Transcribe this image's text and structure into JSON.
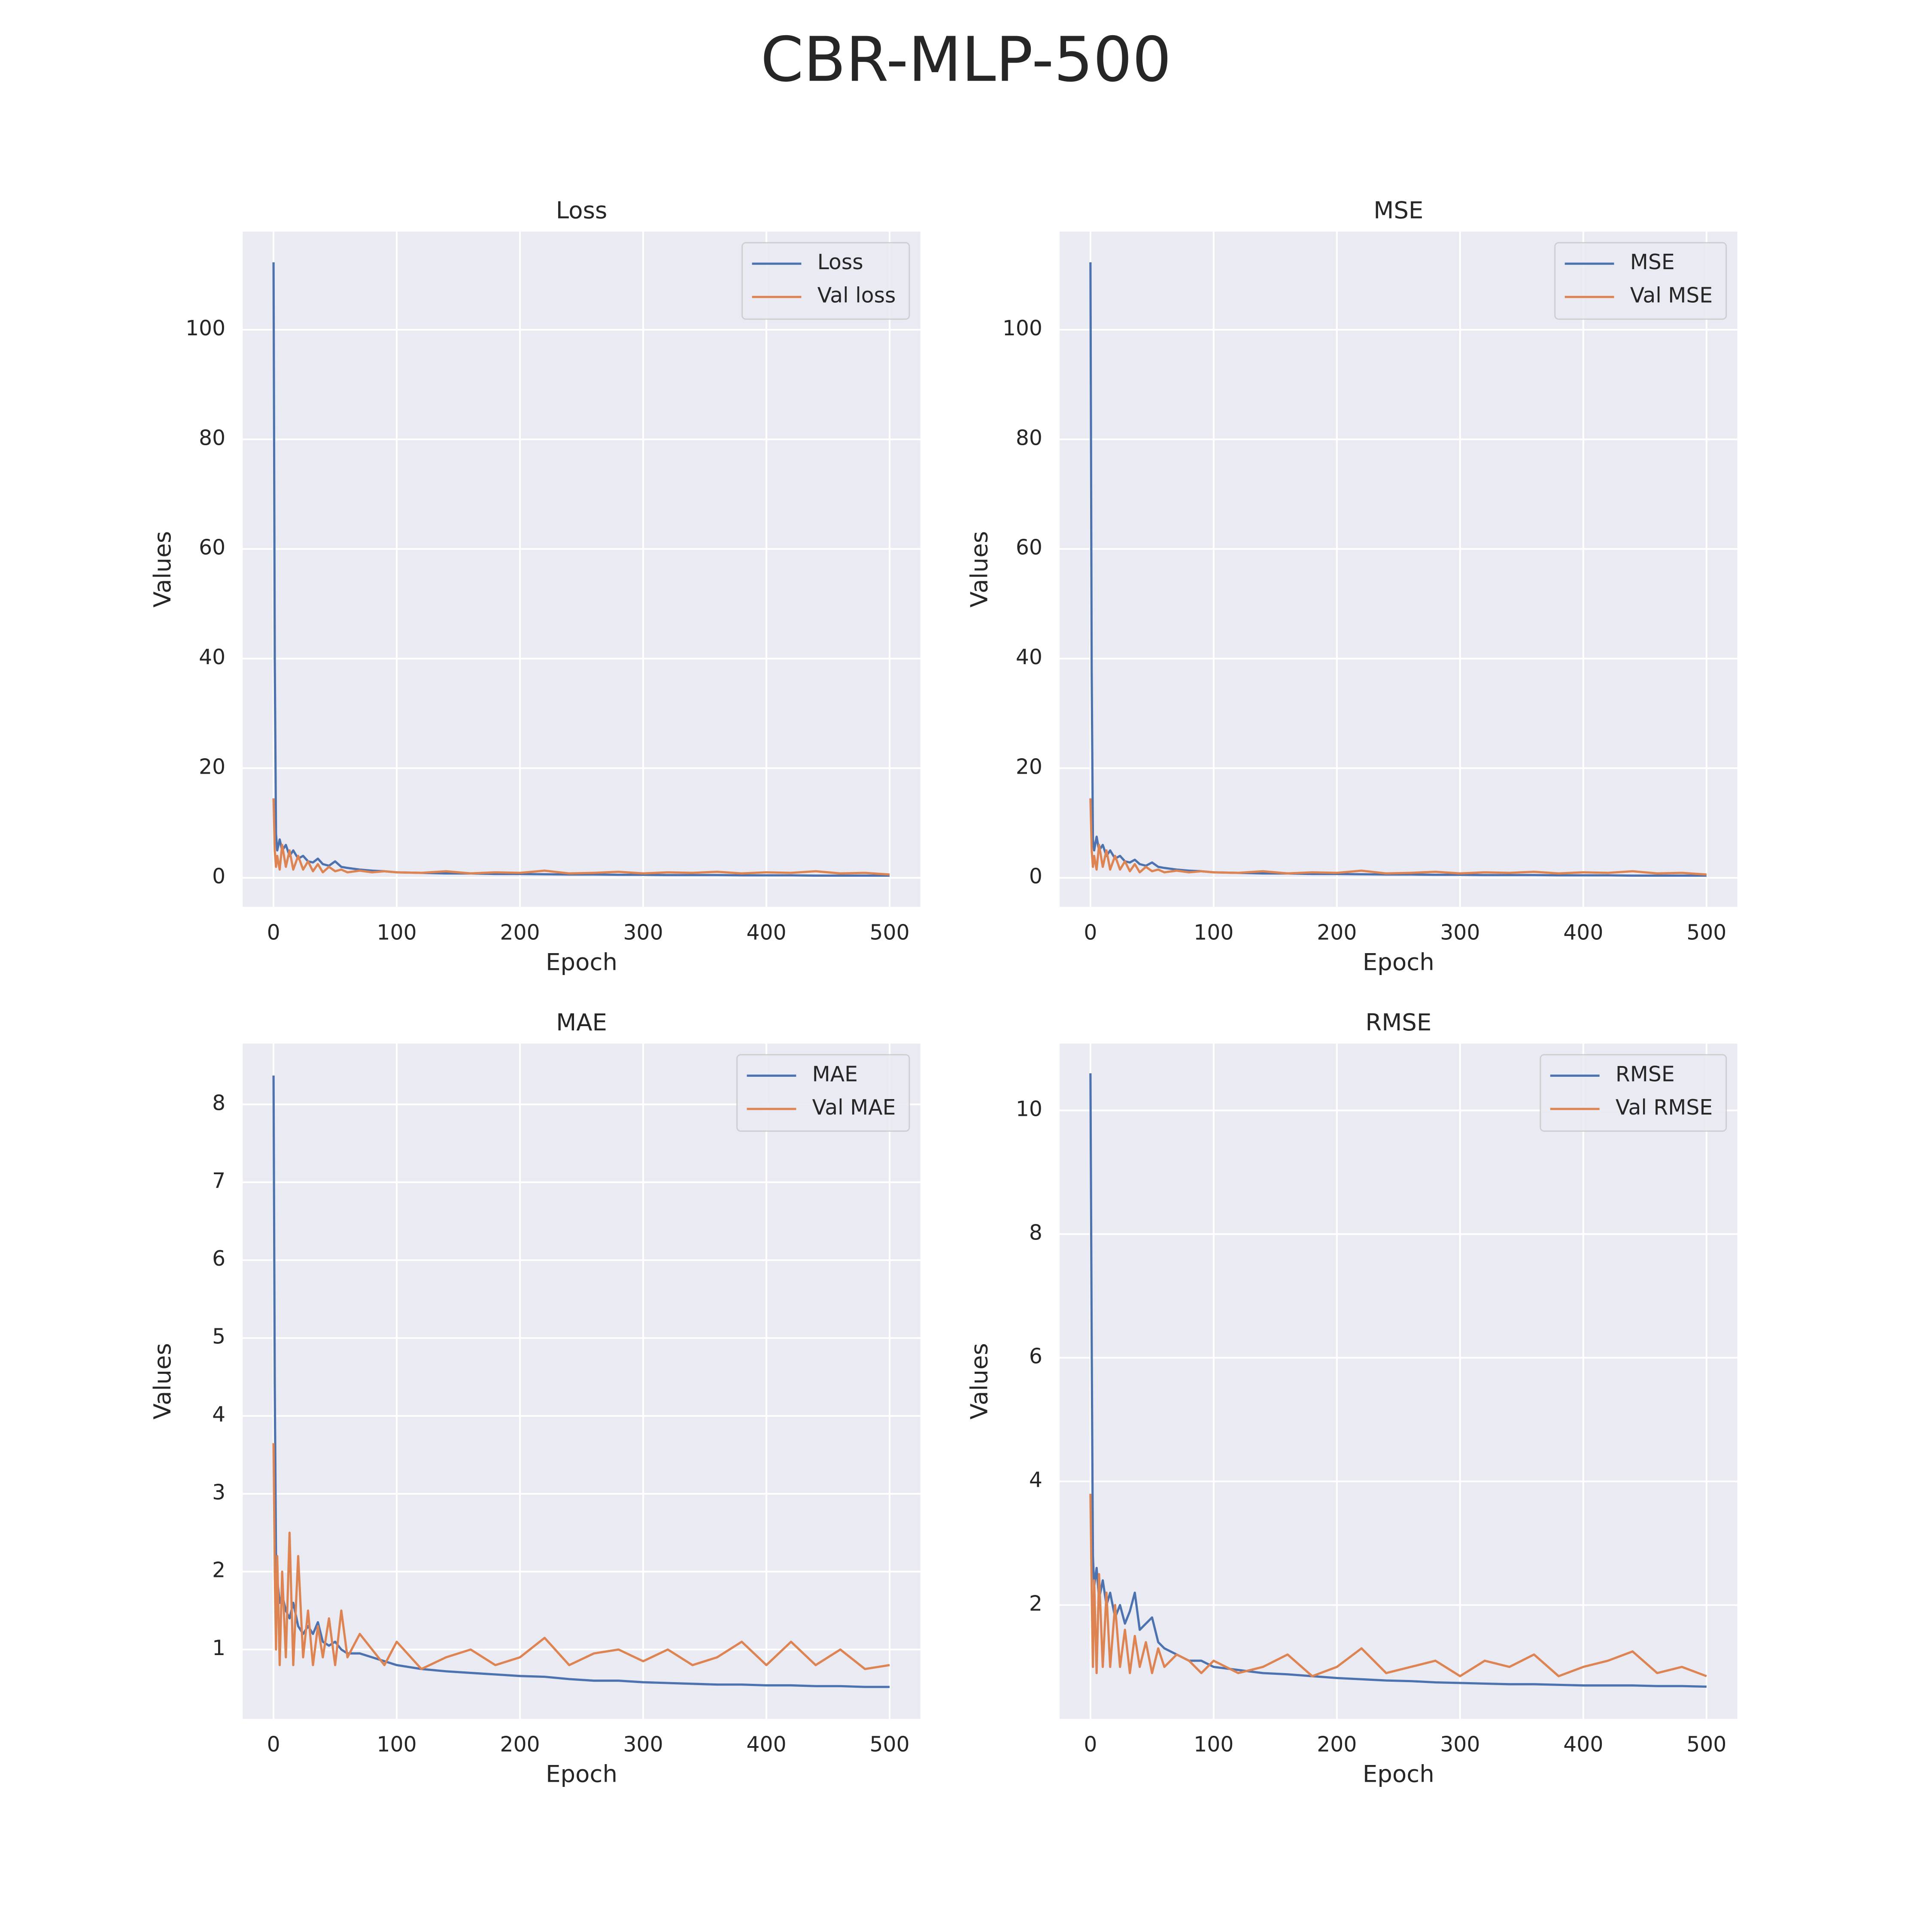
{
  "title": "CBR-MLP-500",
  "chart_data": [
    {
      "type": "line",
      "title": "Loss",
      "xlabel": "Epoch",
      "ylabel": "Values",
      "x": [
        0,
        1,
        2,
        3,
        5,
        7,
        10,
        13,
        16,
        20,
        24,
        28,
        32,
        36,
        40,
        45,
        50,
        55,
        60,
        70,
        80,
        90,
        100,
        120,
        140,
        160,
        180,
        200,
        220,
        240,
        260,
        280,
        300,
        320,
        340,
        360,
        380,
        400,
        420,
        440,
        460,
        480,
        500
      ],
      "series": [
        {
          "name": "Loss",
          "color": "#4c72b0",
          "values": [
            112.3,
            40,
            8,
            5,
            7,
            5,
            6,
            4,
            5,
            3.5,
            4,
            3,
            2.8,
            3.5,
            2.5,
            2.2,
            3,
            2,
            1.8,
            1.5,
            1.3,
            1.2,
            1.0,
            0.9,
            0.8,
            0.8,
            0.7,
            0.7,
            0.65,
            0.6,
            0.6,
            0.55,
            0.55,
            0.5,
            0.5,
            0.5,
            0.45,
            0.45,
            0.45,
            0.4,
            0.4,
            0.4,
            0.4
          ]
        },
        {
          "name": "Val loss",
          "color": "#dd8452",
          "values": [
            14.5,
            5,
            2,
            4,
            1.5,
            6,
            2,
            5,
            1.5,
            4,
            1.5,
            3,
            1.2,
            2.5,
            1,
            2,
            1.2,
            1.5,
            1,
            1.3,
            1,
            1.2,
            1.0,
            0.9,
            1.2,
            0.8,
            1.0,
            0.9,
            1.3,
            0.8,
            0.9,
            1.1,
            0.8,
            1.0,
            0.9,
            1.1,
            0.8,
            1.0,
            0.9,
            1.2,
            0.8,
            0.9,
            0.6
          ]
        }
      ],
      "xlim": [
        -25,
        525
      ],
      "ylim": [
        -5.3,
        117.9
      ],
      "xticks": [
        0,
        100,
        200,
        300,
        400,
        500
      ],
      "yticks": [
        0,
        20,
        40,
        60,
        80,
        100
      ],
      "grid": true,
      "legend": "upper right"
    },
    {
      "type": "line",
      "title": "MSE",
      "xlabel": "Epoch",
      "ylabel": "Values",
      "x": [
        0,
        1,
        2,
        3,
        5,
        7,
        10,
        13,
        16,
        20,
        24,
        28,
        32,
        36,
        40,
        45,
        50,
        55,
        60,
        70,
        80,
        90,
        100,
        120,
        140,
        160,
        180,
        200,
        220,
        240,
        260,
        280,
        300,
        320,
        340,
        360,
        380,
        400,
        420,
        440,
        460,
        480,
        500
      ],
      "series": [
        {
          "name": "MSE",
          "color": "#4c72b0",
          "values": [
            112.3,
            38,
            7,
            5,
            7.5,
            5,
            6,
            4,
            5,
            3.5,
            4,
            3,
            2.8,
            3.3,
            2.5,
            2.2,
            2.8,
            2,
            1.8,
            1.5,
            1.3,
            1.2,
            1.0,
            0.9,
            0.8,
            0.8,
            0.7,
            0.7,
            0.65,
            0.6,
            0.6,
            0.55,
            0.55,
            0.5,
            0.5,
            0.5,
            0.45,
            0.45,
            0.45,
            0.4,
            0.4,
            0.4,
            0.4
          ]
        },
        {
          "name": "Val MSE",
          "color": "#dd8452",
          "values": [
            14.5,
            5,
            2,
            4,
            1.5,
            6,
            2,
            5,
            1.5,
            4,
            1.5,
            3,
            1.2,
            2.5,
            1,
            2,
            1.2,
            1.5,
            1,
            1.3,
            1,
            1.2,
            1.0,
            0.9,
            1.2,
            0.8,
            1.0,
            0.9,
            1.3,
            0.8,
            0.9,
            1.1,
            0.8,
            1.0,
            0.9,
            1.1,
            0.8,
            1.0,
            0.9,
            1.2,
            0.8,
            0.9,
            0.6
          ]
        }
      ],
      "xlim": [
        -25,
        525
      ],
      "ylim": [
        -5.3,
        117.9
      ],
      "xticks": [
        0,
        100,
        200,
        300,
        400,
        500
      ],
      "yticks": [
        0,
        20,
        40,
        60,
        80,
        100
      ],
      "grid": true,
      "legend": "upper right"
    },
    {
      "type": "line",
      "title": "MAE",
      "xlabel": "Epoch",
      "ylabel": "Values",
      "x": [
        0,
        1,
        2,
        3,
        5,
        7,
        10,
        13,
        16,
        20,
        24,
        28,
        32,
        36,
        40,
        45,
        50,
        55,
        60,
        70,
        80,
        90,
        100,
        120,
        140,
        160,
        180,
        200,
        220,
        240,
        260,
        280,
        300,
        320,
        340,
        360,
        380,
        400,
        420,
        440,
        460,
        480,
        500
      ],
      "series": [
        {
          "name": "MAE",
          "color": "#4c72b0",
          "values": [
            8.37,
            4.4,
            2.2,
            1.9,
            1.6,
            1.7,
            1.5,
            1.4,
            1.6,
            1.3,
            1.2,
            1.3,
            1.2,
            1.35,
            1.1,
            1.05,
            1.1,
            1.0,
            0.95,
            0.95,
            0.9,
            0.85,
            0.8,
            0.75,
            0.72,
            0.7,
            0.68,
            0.66,
            0.65,
            0.62,
            0.6,
            0.6,
            0.58,
            0.57,
            0.56,
            0.55,
            0.55,
            0.54,
            0.54,
            0.53,
            0.53,
            0.52,
            0.52
          ]
        },
        {
          "name": "Val MAE",
          "color": "#dd8452",
          "values": [
            3.65,
            2.0,
            1.0,
            2.2,
            0.8,
            2.0,
            0.9,
            2.5,
            0.8,
            2.2,
            0.9,
            1.5,
            0.8,
            1.3,
            0.9,
            1.4,
            0.8,
            1.5,
            0.9,
            1.2,
            1.0,
            0.8,
            1.1,
            0.75,
            0.9,
            1.0,
            0.8,
            0.9,
            1.15,
            0.8,
            0.95,
            1.0,
            0.85,
            1.0,
            0.8,
            0.9,
            1.1,
            0.8,
            1.1,
            0.8,
            1.0,
            0.75,
            0.8
          ]
        }
      ],
      "xlim": [
        -25,
        525
      ],
      "ylim": [
        0.11,
        8.78
      ],
      "xticks": [
        0,
        100,
        200,
        300,
        400,
        500
      ],
      "yticks": [
        1,
        2,
        3,
        4,
        5,
        6,
        7,
        8
      ],
      "grid": true,
      "legend": "upper right"
    },
    {
      "type": "line",
      "title": "RMSE",
      "xlabel": "Epoch",
      "ylabel": "Values",
      "x": [
        0,
        1,
        2,
        3,
        5,
        7,
        10,
        13,
        16,
        20,
        24,
        28,
        32,
        36,
        40,
        45,
        50,
        55,
        60,
        70,
        80,
        90,
        100,
        120,
        140,
        160,
        180,
        200,
        220,
        240,
        260,
        280,
        300,
        320,
        340,
        360,
        380,
        400,
        420,
        440,
        460,
        480,
        500
      ],
      "series": [
        {
          "name": "RMSE",
          "color": "#4c72b0",
          "values": [
            10.6,
            6.3,
            2.8,
            2.3,
            2.6,
            2.1,
            2.4,
            2.0,
            2.2,
            1.8,
            2.0,
            1.7,
            1.9,
            2.2,
            1.6,
            1.7,
            1.8,
            1.4,
            1.3,
            1.2,
            1.1,
            1.1,
            1.0,
            0.95,
            0.9,
            0.88,
            0.85,
            0.82,
            0.8,
            0.78,
            0.77,
            0.75,
            0.74,
            0.73,
            0.72,
            0.72,
            0.71,
            0.7,
            0.7,
            0.7,
            0.69,
            0.69,
            0.68
          ]
        },
        {
          "name": "Val RMSE",
          "color": "#dd8452",
          "values": [
            3.8,
            2.2,
            1.0,
            2.4,
            0.9,
            2.5,
            1.0,
            2.2,
            1.0,
            2.0,
            1.0,
            1.6,
            0.9,
            1.5,
            1.0,
            1.4,
            0.9,
            1.3,
            1.0,
            1.2,
            1.1,
            0.9,
            1.1,
            0.9,
            1.0,
            1.2,
            0.85,
            1.0,
            1.3,
            0.9,
            1.0,
            1.1,
            0.85,
            1.1,
            1.0,
            1.2,
            0.85,
            1.0,
            1.1,
            1.25,
            0.9,
            1.0,
            0.85
          ]
        }
      ],
      "xlim": [
        -25,
        525
      ],
      "ylim": [
        0.16,
        11.08
      ],
      "xticks": [
        0,
        100,
        200,
        300,
        400,
        500
      ],
      "yticks": [
        2,
        4,
        6,
        8,
        10
      ],
      "grid": true,
      "legend": "upper right"
    }
  ]
}
